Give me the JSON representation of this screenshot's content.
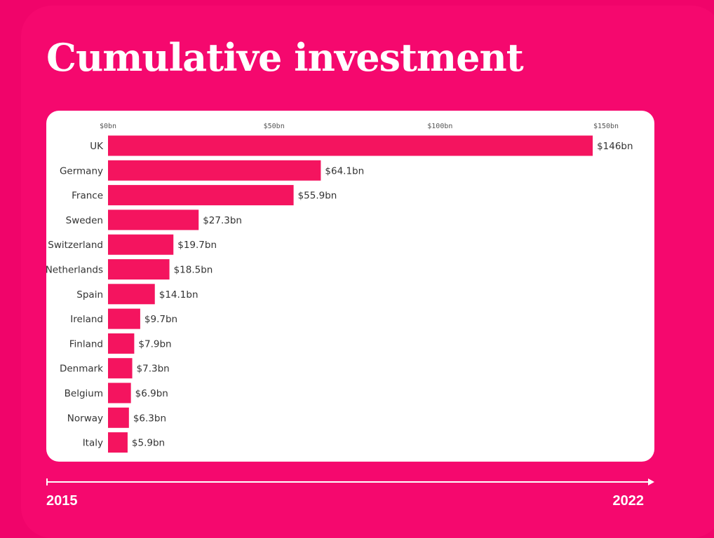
{
  "title": "Cumulative investment",
  "timeline": {
    "start": "2015",
    "end": "2022"
  },
  "colors": {
    "bar": "#f4145f",
    "background": "#f5086e",
    "card": "#ffffff",
    "text": "#ffffff"
  },
  "chart_data": {
    "type": "bar",
    "orientation": "horizontal",
    "title": "Cumulative investment",
    "categories": [
      "UK",
      "Germany",
      "France",
      "Sweden",
      "Switzerland",
      "Netherlands",
      "Spain",
      "Ireland",
      "Finland",
      "Denmark",
      "Belgium",
      "Norway",
      "Italy"
    ],
    "values": [
      146,
      64.1,
      55.9,
      27.3,
      19.7,
      18.5,
      14.1,
      9.7,
      7.9,
      7.3,
      6.9,
      6.3,
      5.9
    ],
    "value_labels": [
      "$146bn",
      "$64.1bn",
      "$55.9bn",
      "$27.3bn",
      "$19.7bn",
      "$18.5bn",
      "$14.1bn",
      "$9.7bn",
      "$7.9bn",
      "$7.3bn",
      "$6.9bn",
      "$6.3bn",
      "$5.9bn"
    ],
    "xticks": [
      0,
      50,
      100,
      150
    ],
    "xtick_labels": [
      "$0bn",
      "$50bn",
      "$100bn",
      "$150bn"
    ],
    "xlim": [
      0,
      150
    ],
    "axis_position": "top",
    "grid": false,
    "legend": "none"
  }
}
